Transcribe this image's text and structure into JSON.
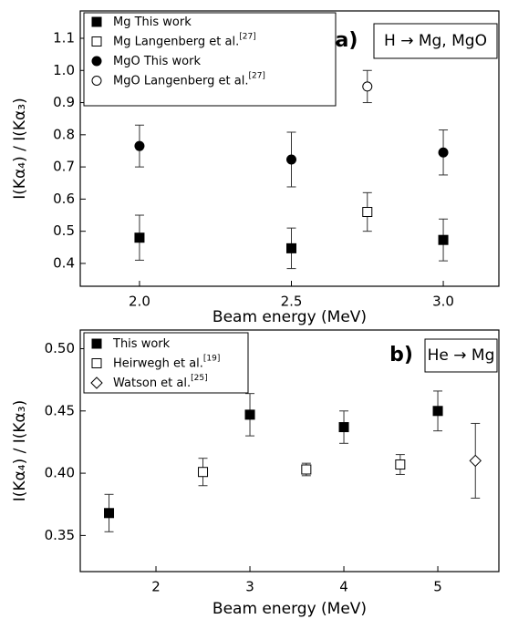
{
  "chart_data": [
    {
      "type": "scatter",
      "annotation": "a)",
      "label_box": "H → Mg, MgO",
      "xlabel": "Beam energy (MeV)",
      "ylabel": "I(Kα₄) / I(Kα₃)",
      "xlim": [
        1.805,
        3.183
      ],
      "ylim": [
        0.329,
        1.185
      ],
      "xticks": [
        {
          "value": 2,
          "label": "2.0"
        },
        2.5,
        {
          "value": 3,
          "label": "3.0"
        }
      ],
      "yticks": [
        0.4,
        0.5,
        0.6,
        0.7,
        0.8,
        0.9,
        {
          "value": 1,
          "label": "1.0"
        },
        1.1
      ],
      "series": [
        {
          "name": "Mg This work",
          "color": "#000000",
          "marker": "square-filled",
          "x": [
            2.0,
            2.5,
            3.0
          ],
          "values": [
            0.48,
            0.447,
            0.473
          ],
          "errors": [
            0.07,
            0.063,
            0.065
          ]
        },
        {
          "name": "Mg Langenberg et al.",
          "ref": "[27]",
          "color": "#000000",
          "marker": "square-open",
          "x": [
            2.75
          ],
          "values": [
            0.56
          ],
          "errors": [
            0.06
          ]
        },
        {
          "name": "MgO This work",
          "color": "#000000",
          "marker": "circle-filled",
          "x": [
            2.0,
            2.5,
            3.0
          ],
          "values": [
            0.765,
            0.723,
            0.745
          ],
          "errors": [
            0.065,
            0.085,
            0.07
          ]
        },
        {
          "name": "MgO Langenberg et al.",
          "ref": "[27]",
          "color": "#000000",
          "marker": "circle-open",
          "x": [
            2.75
          ],
          "values": [
            0.95
          ],
          "errors": [
            0.05
          ]
        }
      ]
    },
    {
      "type": "scatter",
      "annotation": "b)",
      "label_box": "He → Mg",
      "xlabel": "Beam energy (MeV)",
      "ylabel": "I(Kα₄) / I(Kα₃)",
      "xlim": [
        1.194,
        5.65
      ],
      "ylim": [
        0.321,
        0.515
      ],
      "xticks": [
        2,
        3,
        4,
        5
      ],
      "yticks": [
        0.35,
        {
          "value": 0.4,
          "label": "0.40"
        },
        0.45,
        {
          "value": 0.5,
          "label": "0.50"
        }
      ],
      "series": [
        {
          "name": "This work",
          "color": "#000000",
          "marker": "square-filled",
          "x": [
            1.5,
            3,
            4,
            5
          ],
          "values": [
            0.368,
            0.447,
            0.437,
            0.45
          ],
          "errors": [
            0.015,
            0.017,
            0.013,
            0.016
          ]
        },
        {
          "name": "Heirwegh et al.",
          "ref": "[19]",
          "color": "#000000",
          "marker": "square-open",
          "x": [
            2.5,
            3.6,
            4.6
          ],
          "values": [
            0.401,
            0.403,
            0.407
          ],
          "errors": [
            0.011,
            0.005,
            0.008
          ]
        },
        {
          "name": "Watson et al.",
          "ref": "[25]",
          "color": "#000000",
          "marker": "diamond-open",
          "x": [
            5.4
          ],
          "values": [
            0.41
          ],
          "errors": [
            0.03
          ]
        }
      ]
    }
  ]
}
